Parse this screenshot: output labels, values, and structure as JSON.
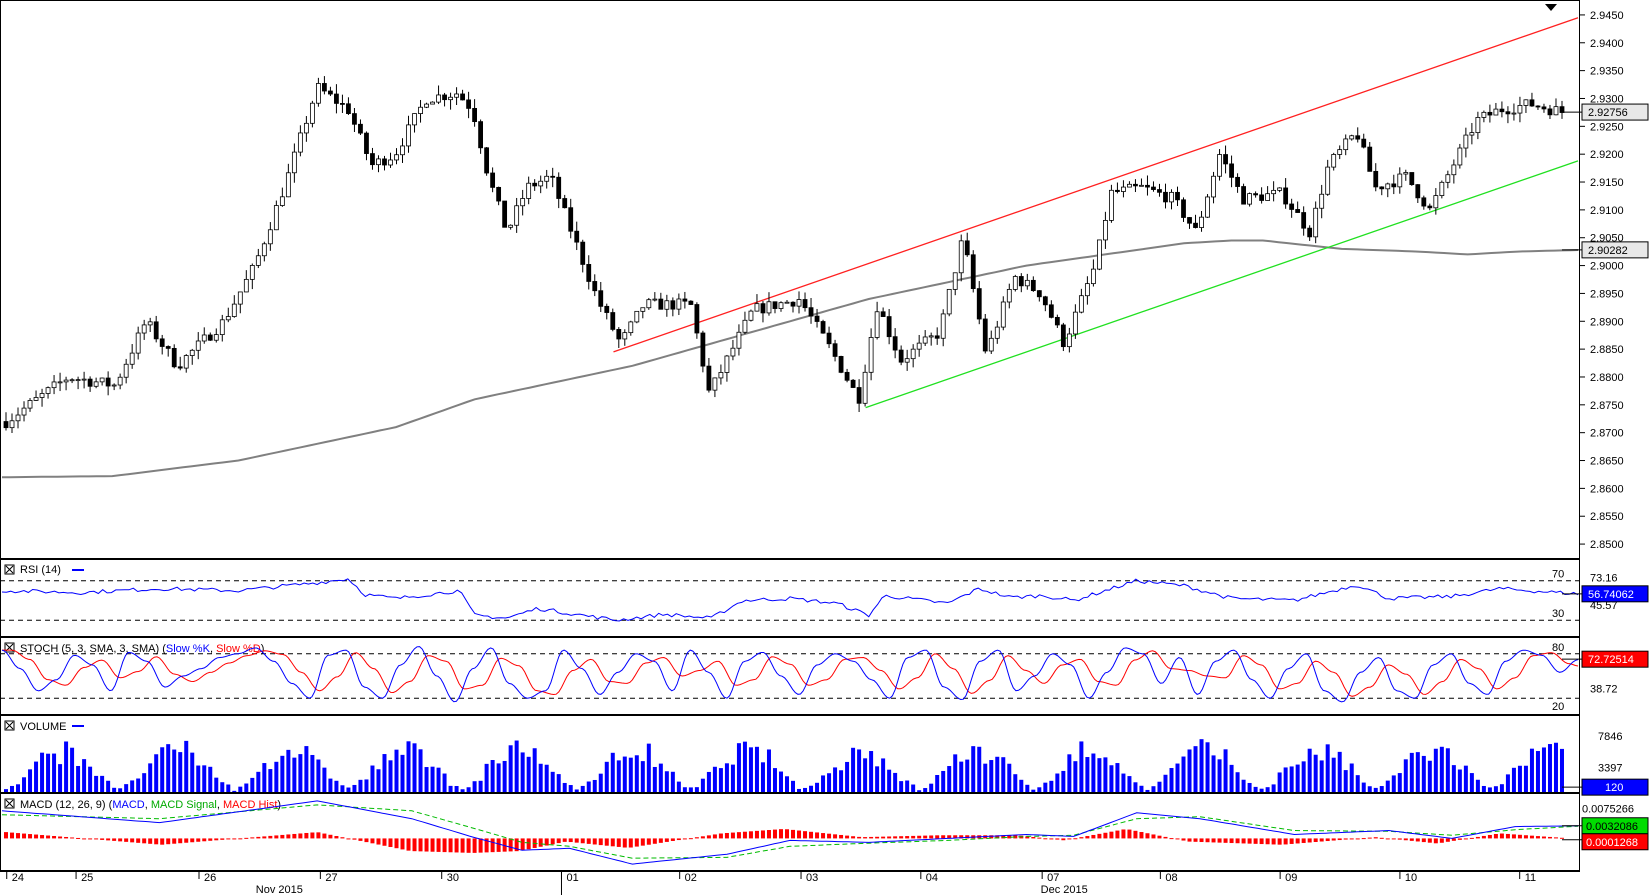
{
  "chart_data": {
    "type": "candlestick",
    "main": {
      "y_ticks": [
        "2.9450",
        "2.9400",
        "2.9350",
        "2.9300",
        "2.9250",
        "2.9200",
        "2.9150",
        "2.9100",
        "2.9050",
        "2.9000",
        "2.8950",
        "2.8900",
        "2.8850",
        "2.8800",
        "2.8750",
        "2.8700",
        "2.8650",
        "2.8600",
        "2.8550",
        "2.8500"
      ],
      "ylim": [
        2.8475,
        2.9475
      ],
      "last_price": "2.92756",
      "ma_value": "2.90282",
      "last_price_num": 2.92756,
      "ma_value_num": 2.90282,
      "upper_channel": [
        {
          "t": 0.388,
          "y": 2.8845
        },
        {
          "t": 1.0,
          "y": 2.9445
        }
      ],
      "lower_channel": [
        {
          "t": 0.548,
          "y": 2.8745
        },
        {
          "t": 1.0,
          "y": 2.9188
        }
      ],
      "keypoints": [
        {
          "t": 0.0,
          "y": 2.872
        },
        {
          "t": 0.04,
          "y": 2.88
        },
        {
          "t": 0.07,
          "y": 2.8785
        },
        {
          "t": 0.09,
          "y": 2.89
        },
        {
          "t": 0.11,
          "y": 2.882
        },
        {
          "t": 0.14,
          "y": 2.89
        },
        {
          "t": 0.16,
          "y": 2.9
        },
        {
          "t": 0.18,
          "y": 2.915
        },
        {
          "t": 0.2,
          "y": 2.932
        },
        {
          "t": 0.22,
          "y": 2.928
        },
        {
          "t": 0.235,
          "y": 2.918
        },
        {
          "t": 0.25,
          "y": 2.92
        },
        {
          "t": 0.27,
          "y": 2.93
        },
        {
          "t": 0.29,
          "y": 2.931
        },
        {
          "t": 0.3,
          "y": 2.928
        },
        {
          "t": 0.31,
          "y": 2.916
        },
        {
          "t": 0.322,
          "y": 2.906
        },
        {
          "t": 0.335,
          "y": 2.914
        },
        {
          "t": 0.35,
          "y": 2.916
        },
        {
          "t": 0.365,
          "y": 2.905
        },
        {
          "t": 0.38,
          "y": 2.894
        },
        {
          "t": 0.395,
          "y": 2.886
        },
        {
          "t": 0.41,
          "y": 2.893
        },
        {
          "t": 0.44,
          "y": 2.893
        },
        {
          "t": 0.452,
          "y": 2.877
        },
        {
          "t": 0.465,
          "y": 2.884
        },
        {
          "t": 0.48,
          "y": 2.892
        },
        {
          "t": 0.51,
          "y": 2.894
        },
        {
          "t": 0.53,
          "y": 2.885
        },
        {
          "t": 0.548,
          "y": 2.876
        },
        {
          "t": 0.56,
          "y": 2.893
        },
        {
          "t": 0.575,
          "y": 2.883
        },
        {
          "t": 0.6,
          "y": 2.888
        },
        {
          "t": 0.615,
          "y": 2.905
        },
        {
          "t": 0.63,
          "y": 2.884
        },
        {
          "t": 0.648,
          "y": 2.898
        },
        {
          "t": 0.665,
          "y": 2.895
        },
        {
          "t": 0.68,
          "y": 2.886
        },
        {
          "t": 0.7,
          "y": 2.9
        },
        {
          "t": 0.71,
          "y": 2.913
        },
        {
          "t": 0.73,
          "y": 2.914
        },
        {
          "t": 0.75,
          "y": 2.912
        },
        {
          "t": 0.765,
          "y": 2.906
        },
        {
          "t": 0.78,
          "y": 2.92
        },
        {
          "t": 0.795,
          "y": 2.912
        },
        {
          "t": 0.82,
          "y": 2.913
        },
        {
          "t": 0.838,
          "y": 2.906
        },
        {
          "t": 0.85,
          "y": 2.918
        },
        {
          "t": 0.868,
          "y": 2.924
        },
        {
          "t": 0.88,
          "y": 2.914
        },
        {
          "t": 0.9,
          "y": 2.916
        },
        {
          "t": 0.915,
          "y": 2.91
        },
        {
          "t": 0.93,
          "y": 2.918
        },
        {
          "t": 0.945,
          "y": 2.926
        },
        {
          "t": 0.96,
          "y": 2.928
        },
        {
          "t": 0.98,
          "y": 2.929
        },
        {
          "t": 1.0,
          "y": 2.9276
        }
      ],
      "ma_keypoints": [
        {
          "t": 0.0,
          "y": 2.862
        },
        {
          "t": 0.07,
          "y": 2.8622
        },
        {
          "t": 0.15,
          "y": 2.865
        },
        {
          "t": 0.2,
          "y": 2.868
        },
        {
          "t": 0.25,
          "y": 2.871
        },
        {
          "t": 0.3,
          "y": 2.876
        },
        {
          "t": 0.35,
          "y": 2.879
        },
        {
          "t": 0.4,
          "y": 2.882
        },
        {
          "t": 0.45,
          "y": 2.886
        },
        {
          "t": 0.5,
          "y": 2.89
        },
        {
          "t": 0.55,
          "y": 2.894
        },
        {
          "t": 0.6,
          "y": 2.897
        },
        {
          "t": 0.65,
          "y": 2.9
        },
        {
          "t": 0.7,
          "y": 2.902
        },
        {
          "t": 0.75,
          "y": 2.904
        },
        {
          "t": 0.78,
          "y": 2.9045
        },
        {
          "t": 0.8,
          "y": 2.9045
        },
        {
          "t": 0.85,
          "y": 2.903
        },
        {
          "t": 0.9,
          "y": 2.9025
        },
        {
          "t": 0.93,
          "y": 2.902
        },
        {
          "t": 0.96,
          "y": 2.9025
        },
        {
          "t": 1.0,
          "y": 2.9028
        }
      ]
    },
    "rsi": {
      "title": "RSI (14)",
      "levels": [
        "70",
        "30"
      ],
      "axis_labels": [
        "73.16",
        "45.57"
      ],
      "value": "56.74062",
      "value_num": 56.74,
      "keypoints": [
        {
          "t": 0.0,
          "y": 60
        },
        {
          "t": 0.05,
          "y": 58
        },
        {
          "t": 0.1,
          "y": 62
        },
        {
          "t": 0.15,
          "y": 60
        },
        {
          "t": 0.2,
          "y": 68
        },
        {
          "t": 0.22,
          "y": 72
        },
        {
          "t": 0.23,
          "y": 56
        },
        {
          "t": 0.25,
          "y": 52
        },
        {
          "t": 0.29,
          "y": 60
        },
        {
          "t": 0.3,
          "y": 35
        },
        {
          "t": 0.32,
          "y": 32
        },
        {
          "t": 0.34,
          "y": 42
        },
        {
          "t": 0.36,
          "y": 37
        },
        {
          "t": 0.39,
          "y": 30
        },
        {
          "t": 0.42,
          "y": 36
        },
        {
          "t": 0.45,
          "y": 32
        },
        {
          "t": 0.47,
          "y": 50
        },
        {
          "t": 0.5,
          "y": 52
        },
        {
          "t": 0.53,
          "y": 47
        },
        {
          "t": 0.55,
          "y": 35
        },
        {
          "t": 0.56,
          "y": 55
        },
        {
          "t": 0.6,
          "y": 47
        },
        {
          "t": 0.62,
          "y": 62
        },
        {
          "t": 0.64,
          "y": 53
        },
        {
          "t": 0.66,
          "y": 55
        },
        {
          "t": 0.68,
          "y": 50
        },
        {
          "t": 0.7,
          "y": 60
        },
        {
          "t": 0.72,
          "y": 70
        },
        {
          "t": 0.75,
          "y": 65
        },
        {
          "t": 0.78,
          "y": 52
        },
        {
          "t": 0.82,
          "y": 50
        },
        {
          "t": 0.86,
          "y": 66
        },
        {
          "t": 0.88,
          "y": 52
        },
        {
          "t": 0.92,
          "y": 54
        },
        {
          "t": 0.95,
          "y": 62
        },
        {
          "t": 1.0,
          "y": 56.7
        }
      ]
    },
    "stoch": {
      "title": "STOCH (5, 3, SMA, 3, SMA)",
      "legend_k": "Slow %K",
      "legend_d": "Slow %D",
      "levels": [
        "80",
        "20"
      ],
      "axis_labels": [
        "38.72"
      ],
      "value": "72.72514",
      "value_num": 72.73,
      "k_values": [
        85,
        60,
        30,
        45,
        78,
        65,
        30,
        82,
        70,
        35,
        50,
        60,
        75,
        80,
        88,
        70,
        40,
        20,
        78,
        85,
        35,
        20,
        65,
        90,
        50,
        15,
        60,
        88,
        40,
        20,
        30,
        85,
        60,
        25,
        55,
        80,
        70,
        30,
        85,
        55,
        20,
        70,
        82,
        50,
        25,
        65,
        80,
        70,
        45,
        20,
        75,
        85,
        35,
        18,
        70,
        85,
        30,
        50,
        80,
        65,
        20,
        55,
        88,
        80,
        40,
        75,
        25,
        70,
        85,
        45,
        20,
        60,
        80,
        30,
        15,
        55,
        75,
        30,
        20,
        65,
        80,
        40,
        25,
        70,
        85,
        78,
        55,
        72
      ]
    },
    "volume": {
      "title": "VOLUME",
      "axis_labels": [
        "7846",
        "3397"
      ],
      "value": "120",
      "value_num": 120,
      "ylim": [
        0,
        10500
      ],
      "max_bar": 9000
    },
    "macd": {
      "title": "MACD (12, 26, 9)",
      "legend_macd": "MACD",
      "legend_signal": "MACD Signal",
      "legend_hist": "MACD Hist",
      "axis_labels": [
        "0.0075266"
      ],
      "value_signal": "0.0032086",
      "value_hist": "0.0001268",
      "signal_num": 0.0032086,
      "hist_num": 0.0001268,
      "ylim": [
        -0.008,
        0.011
      ],
      "macd_keypoints": [
        {
          "t": 0.0,
          "y": 0.007
        },
        {
          "t": 0.1,
          "y": 0.004
        },
        {
          "t": 0.2,
          "y": 0.0095
        },
        {
          "t": 0.26,
          "y": 0.005
        },
        {
          "t": 0.3,
          "y": 0.0002
        },
        {
          "t": 0.33,
          "y": -0.003
        },
        {
          "t": 0.36,
          "y": -0.0025
        },
        {
          "t": 0.4,
          "y": -0.0065
        },
        {
          "t": 0.46,
          "y": -0.004
        },
        {
          "t": 0.5,
          "y": -0.0005
        },
        {
          "t": 0.55,
          "y": -0.001
        },
        {
          "t": 0.6,
          "y": 0.0
        },
        {
          "t": 0.65,
          "y": 0.001
        },
        {
          "t": 0.68,
          "y": 0.0005
        },
        {
          "t": 0.72,
          "y": 0.0065
        },
        {
          "t": 0.76,
          "y": 0.005
        },
        {
          "t": 0.82,
          "y": 0.001
        },
        {
          "t": 0.88,
          "y": 0.002
        },
        {
          "t": 0.92,
          "y": 0.0
        },
        {
          "t": 0.96,
          "y": 0.003
        },
        {
          "t": 1.0,
          "y": 0.0032
        }
      ],
      "signal_keypoints": [
        {
          "t": 0.0,
          "y": 0.006
        },
        {
          "t": 0.1,
          "y": 0.005
        },
        {
          "t": 0.2,
          "y": 0.0085
        },
        {
          "t": 0.26,
          "y": 0.007
        },
        {
          "t": 0.3,
          "y": 0.0025
        },
        {
          "t": 0.33,
          "y": -0.001
        },
        {
          "t": 0.36,
          "y": -0.002
        },
        {
          "t": 0.4,
          "y": -0.005
        },
        {
          "t": 0.46,
          "y": -0.0048
        },
        {
          "t": 0.5,
          "y": -0.002
        },
        {
          "t": 0.55,
          "y": -0.0012
        },
        {
          "t": 0.6,
          "y": -0.0005
        },
        {
          "t": 0.65,
          "y": 0.0005
        },
        {
          "t": 0.68,
          "y": 0.0008
        },
        {
          "t": 0.72,
          "y": 0.005
        },
        {
          "t": 0.76,
          "y": 0.0055
        },
        {
          "t": 0.82,
          "y": 0.002
        },
        {
          "t": 0.88,
          "y": 0.0018
        },
        {
          "t": 0.92,
          "y": 0.0008
        },
        {
          "t": 0.96,
          "y": 0.0022
        },
        {
          "t": 1.0,
          "y": 0.0031
        }
      ]
    },
    "x_axis": {
      "ticks": [
        {
          "label": "24",
          "t": 0.003
        },
        {
          "label": "25",
          "t": 0.047
        },
        {
          "label": "26",
          "t": 0.125
        },
        {
          "label": "27",
          "t": 0.202
        },
        {
          "label": "30",
          "t": 0.279
        },
        {
          "label": "01",
          "t": 0.355
        },
        {
          "label": "02",
          "t": 0.43
        },
        {
          "label": "03",
          "t": 0.507
        },
        {
          "label": "04",
          "t": 0.583
        },
        {
          "label": "07",
          "t": 0.66
        },
        {
          "label": "08",
          "t": 0.735
        },
        {
          "label": "09",
          "t": 0.811
        },
        {
          "label": "10",
          "t": 0.887
        },
        {
          "label": "11",
          "t": 0.963
        }
      ],
      "months": [
        {
          "label": "Nov 2015",
          "t": 0.175
        },
        {
          "label": "Dec 2015",
          "t": 0.673
        }
      ]
    }
  }
}
